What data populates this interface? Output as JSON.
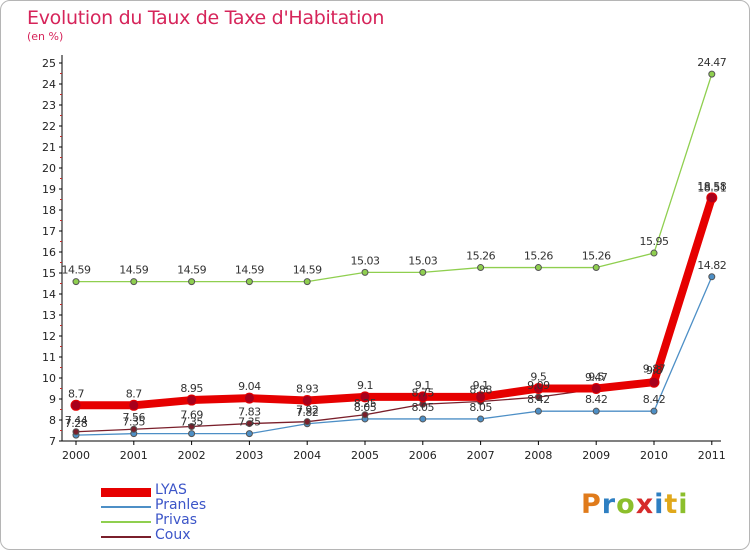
{
  "page": {
    "title": "Evolution du Taux de Taxe d'Habitation",
    "unit": "(en %)",
    "logo": "Proxiti",
    "colors": {
      "title": "#d6245a",
      "legend_text": "#3c55c8"
    }
  },
  "chart_data": {
    "type": "line",
    "title": "Evolution du Taux de Taxe d'Habitation",
    "ylabel": "(en %)",
    "xlabel": "",
    "categories": [
      "2000",
      "2001",
      "2002",
      "2003",
      "2004",
      "2005",
      "2006",
      "2007",
      "2008",
      "2009",
      "2010",
      "2011"
    ],
    "ylim": [
      7,
      25
    ],
    "yticks": [
      "7",
      "8",
      "9",
      "10",
      "11",
      "12",
      "13",
      "14",
      "15",
      "16",
      "17",
      "18",
      "19",
      "20",
      "21",
      "22",
      "23",
      "24",
      "25"
    ],
    "grid": false,
    "legend_position": "bottom-left",
    "series": [
      {
        "name": "Privas",
        "color": "#8fcf4f",
        "values": [
          14.59,
          14.59,
          14.59,
          14.59,
          14.59,
          15.03,
          15.03,
          15.26,
          15.26,
          15.26,
          15.95,
          24.47
        ],
        "labels": [
          "14.59",
          "14.59",
          "14.59",
          "14.59",
          "14.59",
          "15.03",
          "15.03",
          "15.26",
          "15.26",
          "15.26",
          "15.95",
          "24.47"
        ]
      },
      {
        "name": "Pranles",
        "color": "#4d8fc6",
        "values": [
          7.28,
          7.35,
          7.35,
          7.35,
          7.82,
          8.05,
          8.05,
          8.05,
          8.42,
          8.42,
          8.42,
          14.82
        ],
        "labels": [
          "7.28",
          "7.35",
          "7.35",
          "7.35",
          "7.82",
          "8.05",
          "8.05",
          "8.05",
          "8.42",
          "8.42",
          "8.42",
          "14.82"
        ]
      },
      {
        "name": "Coux",
        "color": "#7a1f2b",
        "values": [
          7.44,
          7.56,
          7.69,
          7.83,
          7.92,
          8.25,
          8.75,
          8.88,
          9.09,
          9.47,
          9.87,
          18.51
        ],
        "labels": [
          "7.44",
          "7.56",
          "7.69",
          "7.83",
          "7.92",
          "8.25",
          "8.75",
          "8.88",
          "9.09",
          "9.47",
          "9.87",
          "18.51"
        ]
      },
      {
        "name": "LYAS",
        "color": "#e60000",
        "values": [
          8.7,
          8.7,
          8.95,
          9.04,
          8.93,
          9.1,
          9.1,
          9.1,
          9.5,
          9.5,
          9.8,
          18.58
        ],
        "labels": [
          "8.7",
          "8.7",
          "8.95",
          "9.04",
          "8.93",
          "9.1",
          "9.1",
          "9.1",
          "9.5",
          "9.5",
          "9.8",
          "18.58"
        ]
      }
    ]
  }
}
